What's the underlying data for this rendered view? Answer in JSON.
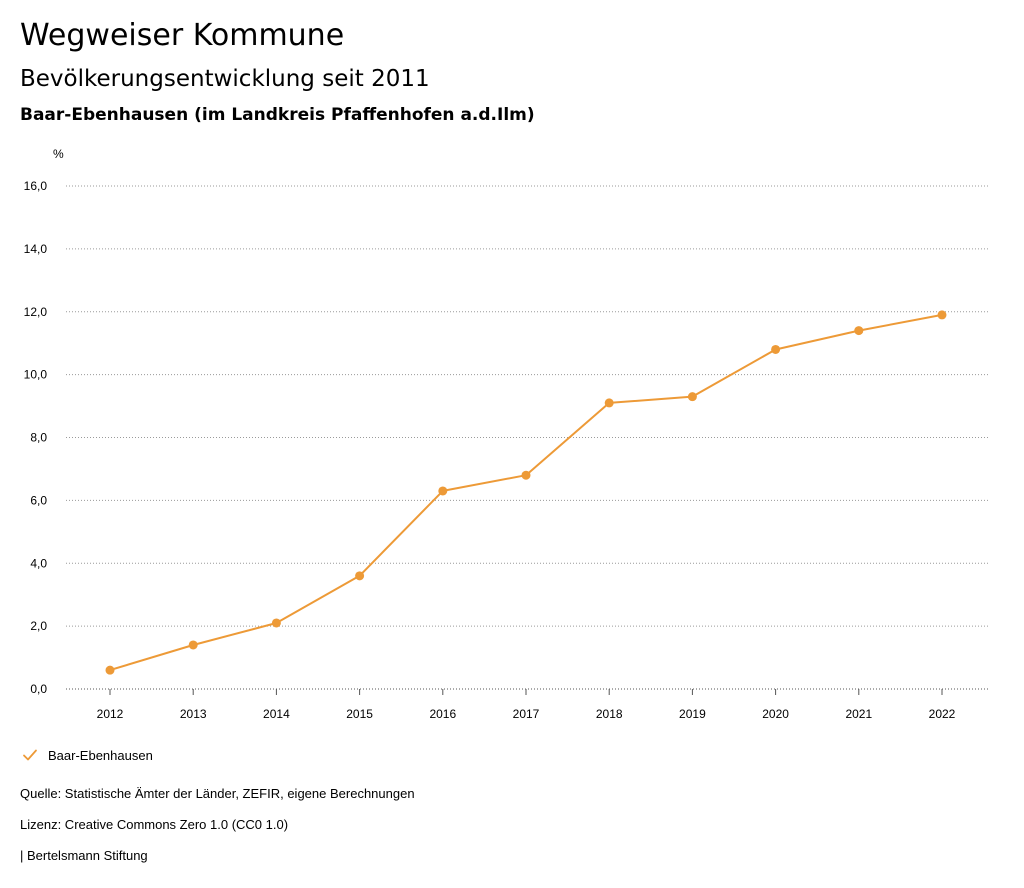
{
  "header": {
    "title": "Wegweiser Kommune",
    "subtitle": "Bevölkerungsentwicklung seit 2011",
    "region": "Baar-Ebenhausen (im Landkreis Pfaffenhofen a.d.Ilm)"
  },
  "chart_data": {
    "type": "line",
    "ylabel": "%",
    "ylim": [
      0,
      16
    ],
    "yticks": [
      "0,0",
      "2,0",
      "4,0",
      "6,0",
      "8,0",
      "10,0",
      "12,0",
      "14,0",
      "16,0"
    ],
    "grid": "horizontal dotted",
    "categories": [
      "2012",
      "2013",
      "2014",
      "2015",
      "2016",
      "2017",
      "2018",
      "2019",
      "2020",
      "2021",
      "2022"
    ],
    "series": [
      {
        "name": "Baar-Ebenhausen",
        "color": "#ED9A37",
        "values": [
          0.6,
          1.4,
          2.1,
          3.6,
          6.3,
          6.8,
          9.1,
          9.3,
          10.8,
          11.4,
          11.9
        ]
      }
    ],
    "legend_position": "bottom-left"
  },
  "legend": {
    "label": "Baar-Ebenhausen",
    "icon": "check-icon"
  },
  "footer": {
    "source": "Quelle: Statistische Ämter der Länder, ZEFIR, eigene Berechnungen",
    "license": "Lizenz: Creative Commons Zero 1.0 (CC0 1.0)",
    "publisher": "| Bertelsmann Stiftung"
  },
  "colors": {
    "accent": "#ED9A37",
    "grid": "#9a9a9a",
    "axis": "#555555"
  }
}
